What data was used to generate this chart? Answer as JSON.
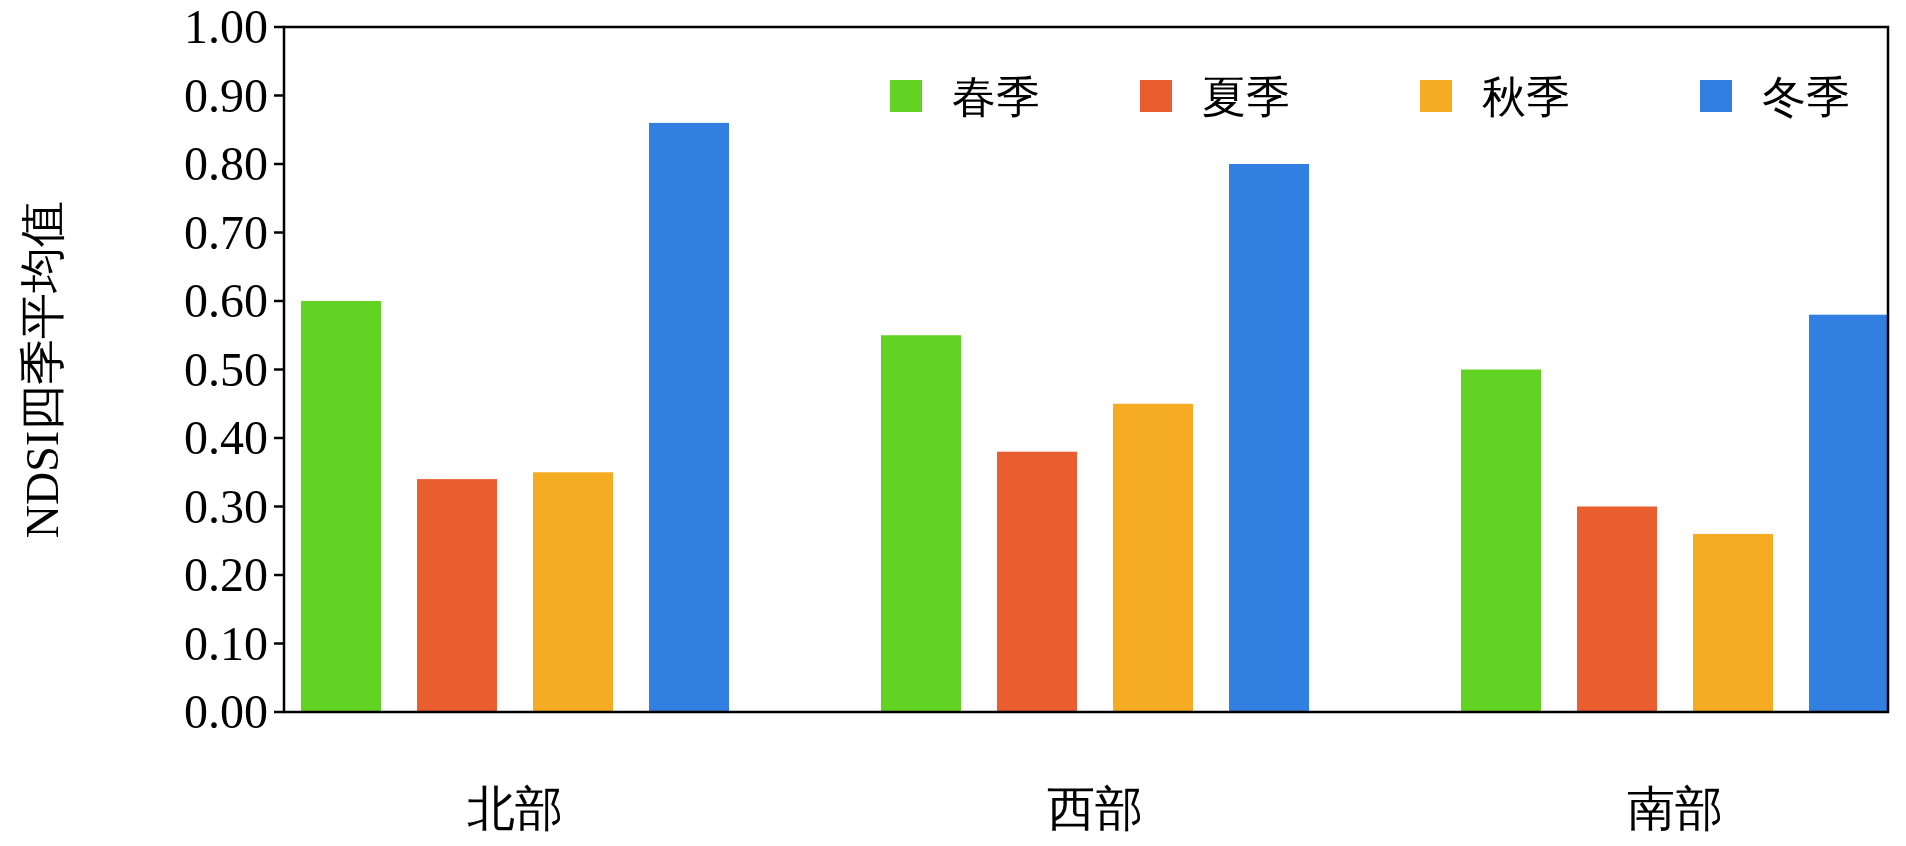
{
  "chart_data": {
    "type": "bar",
    "ylabel": "NDSI四季平均值",
    "categories": [
      "北部",
      "西部",
      "南部"
    ],
    "series": [
      {
        "name": "春季",
        "color": "#62d323",
        "values": [
          0.6,
          0.55,
          0.5
        ]
      },
      {
        "name": "夏季",
        "color": "#e95e2e",
        "values": [
          0.34,
          0.38,
          0.3
        ]
      },
      {
        "name": "秋季",
        "color": "#f6ac22",
        "values": [
          0.35,
          0.45,
          0.26
        ]
      },
      {
        "name": "冬季",
        "color": "#317fe0",
        "values": [
          0.86,
          0.8,
          0.58
        ]
      }
    ],
    "ylim": [
      0,
      1
    ],
    "yticks": [
      {
        "value": 0,
        "label": "0.00"
      },
      {
        "value": 0.1,
        "label": "0.10"
      },
      {
        "value": 0.2,
        "label": "0.20"
      },
      {
        "value": 0.3,
        "label": "0.30"
      },
      {
        "value": 0.4,
        "label": "0.40"
      },
      {
        "value": 0.5,
        "label": "0.50"
      },
      {
        "value": 0.6,
        "label": "0.60"
      },
      {
        "value": 0.7,
        "label": "0.70"
      },
      {
        "value": 0.8,
        "label": "0.80"
      },
      {
        "value": 0.9,
        "label": "0.90"
      },
      {
        "value": 1,
        "label": "1.00"
      }
    ],
    "legend": "top right",
    "grid": false
  }
}
